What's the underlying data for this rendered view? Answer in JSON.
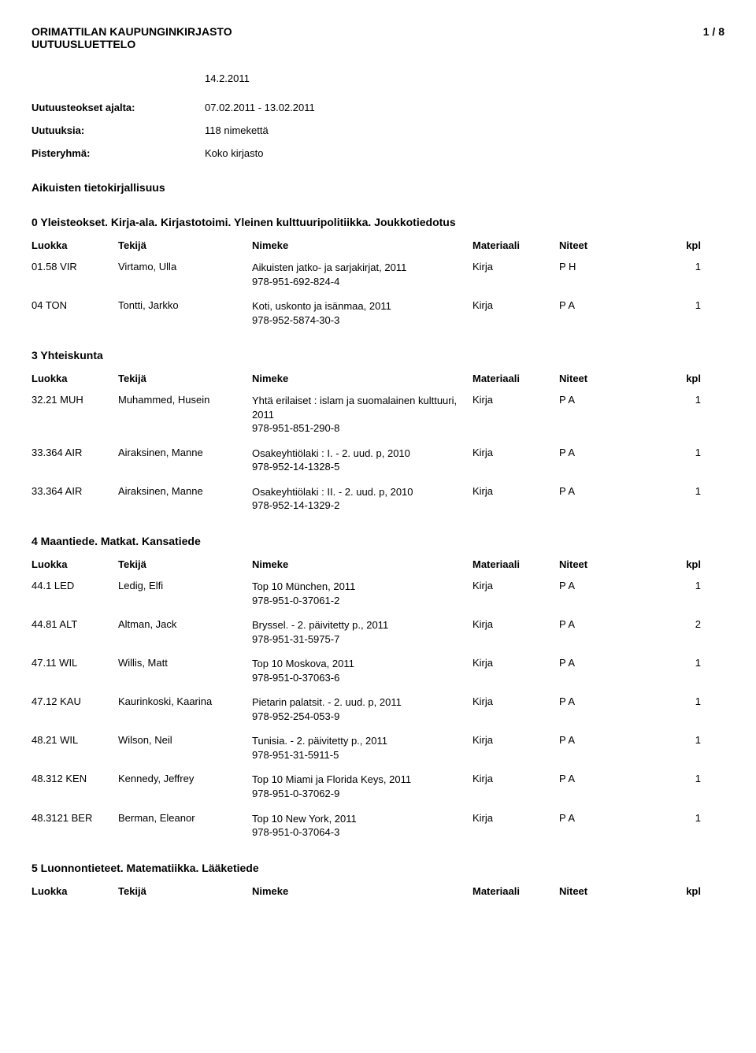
{
  "header": {
    "library": "ORIMATTILAN KAUPUNGINKIRJASTO",
    "pagenum": "1 / 8",
    "subtitle": "UUTUUSLUETTELO",
    "date": "14.2.2011"
  },
  "meta": {
    "period_label": "Uutuusteokset ajalta:",
    "period_value": "07.02.2011 - 13.02.2011",
    "count_label": "Uutuuksia:",
    "count_value": "118 nimekettä",
    "group_label": "Pisteryhmä:",
    "group_value": "Koko kirjasto"
  },
  "columns": {
    "luokka": "Luokka",
    "tekija": "Tekijä",
    "nimeke": "Nimeke",
    "materiaali": "Materiaali",
    "niteet": "Niteet",
    "kpl": "kpl"
  },
  "sections": [
    {
      "title": "Aikuisten tietokirjallisuus",
      "subheading": "0 Yleisteokset. Kirja-ala. Kirjastotoimi. Yleinen kulttuuripolitiikka. Joukkotiedotus",
      "entries": [
        {
          "luokka": "01.58 VIR",
          "tekija": "Virtamo, Ulla",
          "nimeke": "Aikuisten jatko- ja sarjakirjat, 2011",
          "isbn": "978-951-692-824-4",
          "mat": "Kirja",
          "niteet": "P H",
          "kpl": "1"
        },
        {
          "luokka": "04 TON",
          "tekija": "Tontti, Jarkko",
          "nimeke": "Koti, uskonto ja isänmaa, 2011",
          "isbn": "978-952-5874-30-3",
          "mat": "Kirja",
          "niteet": "P A",
          "kpl": "1"
        }
      ]
    },
    {
      "title": "3 Yhteiskunta",
      "entries": [
        {
          "luokka": "32.21 MUH",
          "tekija": "Muhammed, Husein",
          "nimeke": "Yhtä erilaiset : islam ja suomalainen kulttuuri, 2011",
          "isbn": "978-951-851-290-8",
          "mat": "Kirja",
          "niteet": "P A",
          "kpl": "1"
        },
        {
          "luokka": "33.364 AIR",
          "tekija": "Airaksinen, Manne",
          "nimeke": "Osakeyhtiölaki : I. - 2. uud. p, 2010",
          "isbn": "978-952-14-1328-5",
          "mat": "Kirja",
          "niteet": "P A",
          "kpl": "1"
        },
        {
          "luokka": "33.364 AIR",
          "tekija": "Airaksinen, Manne",
          "nimeke": "Osakeyhtiölaki : II. - 2. uud. p, 2010",
          "isbn": "978-952-14-1329-2",
          "mat": "Kirja",
          "niteet": "P A",
          "kpl": "1"
        }
      ]
    },
    {
      "title": "4 Maantiede. Matkat. Kansatiede",
      "entries": [
        {
          "luokka": "44.1 LED",
          "tekija": "Ledig, Elfi",
          "nimeke": "Top 10 München, 2011",
          "isbn": "978-951-0-37061-2",
          "mat": "Kirja",
          "niteet": "P A",
          "kpl": "1"
        },
        {
          "luokka": "44.81 ALT",
          "tekija": "Altman, Jack",
          "nimeke": "Bryssel. - 2. päivitetty p., 2011",
          "isbn": "978-951-31-5975-7",
          "mat": "Kirja",
          "niteet": "P A",
          "kpl": "2"
        },
        {
          "luokka": "47.11 WIL",
          "tekija": "Willis, Matt",
          "nimeke": "Top 10 Moskova, 2011",
          "isbn": "978-951-0-37063-6",
          "mat": "Kirja",
          "niteet": "P A",
          "kpl": "1"
        },
        {
          "luokka": "47.12 KAU",
          "tekija": "Kaurinkoski, Kaarina",
          "nimeke": "Pietarin palatsit. - 2. uud. p, 2011",
          "isbn": "978-952-254-053-9",
          "mat": "Kirja",
          "niteet": "P A",
          "kpl": "1"
        },
        {
          "luokka": "48.21 WIL",
          "tekija": "Wilson, Neil",
          "nimeke": "Tunisia. - 2. päivitetty p., 2011",
          "isbn": "978-951-31-5911-5",
          "mat": "Kirja",
          "niteet": "P A",
          "kpl": "1"
        },
        {
          "luokka": "48.312 KEN",
          "tekija": "Kennedy, Jeffrey",
          "nimeke": "Top 10 Miami ja Florida Keys, 2011",
          "isbn": "978-951-0-37062-9",
          "mat": "Kirja",
          "niteet": "P A",
          "kpl": "1"
        },
        {
          "luokka": "48.3121 BER",
          "tekija": "Berman, Eleanor",
          "nimeke": "Top 10 New York, 2011",
          "isbn": "978-951-0-37064-3",
          "mat": "Kirja",
          "niteet": "P A",
          "kpl": "1"
        }
      ]
    },
    {
      "title": "5 Luonnontieteet. Matematiikka. Lääketiede",
      "entries": []
    }
  ]
}
